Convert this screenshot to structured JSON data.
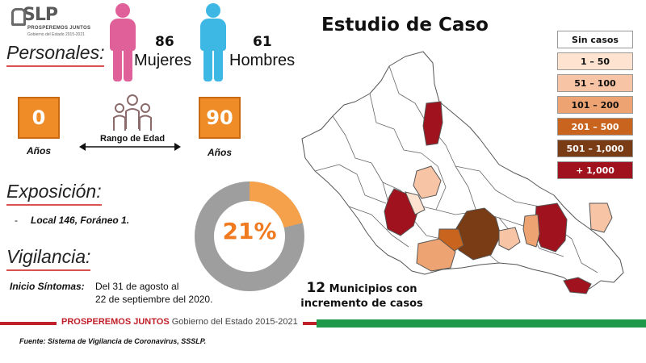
{
  "logo": {
    "name": "SLP",
    "line1": "PROSPEREMOS JUNTOS",
    "line2": "Gobierno del Estado 2015-2021"
  },
  "personales": {
    "heading": "Personales:",
    "women_count": "86",
    "women_label": "Mujeres",
    "men_count": "61",
    "men_label": "Hombres"
  },
  "age": {
    "min": "0",
    "max": "90",
    "min_unit": "Años",
    "max_unit": "Años",
    "range_label": "Rango de Edad"
  },
  "exposicion": {
    "heading": "Exposición:",
    "bullet": "-",
    "detail": "Local 146, Foráneo 1."
  },
  "vigilancia": {
    "heading": "Vigilancia:",
    "label": "Inicio Síntomas:",
    "line1": "Del 31 de agosto al",
    "line2": "22 de septiembre del 2020."
  },
  "donut": {
    "value_text": "21%",
    "fraction": 0.21,
    "fill_color": "#f5a04a",
    "track_color": "#9e9e9e"
  },
  "title": "Estudio de Caso",
  "legend": [
    {
      "label": "Sin casos",
      "color": "#ffffff",
      "text_color": "#111111"
    },
    {
      "label": "1 – 50",
      "color": "#fde3d0",
      "text_color": "#111111"
    },
    {
      "label": "51 – 100",
      "color": "#f7c4a5",
      "text_color": "#111111"
    },
    {
      "label": "101 – 200",
      "color": "#eea472",
      "text_color": "#111111"
    },
    {
      "label": "201 – 500",
      "color": "#c9641e",
      "text_color": "#ffffff"
    },
    {
      "label": "501 – 1,000",
      "color": "#7a3c14",
      "text_color": "#ffffff"
    },
    {
      "label": "+ 1,000",
      "color": "#a0121e",
      "text_color": "#ffffff"
    }
  ],
  "municipios": {
    "count": "12",
    "text_a": "Municipios con",
    "text_b": "incremento de casos"
  },
  "footer": {
    "brand_bold": "PROSPEREMOS JUNTOS",
    "brand_rest": "Gobierno del Estado 2015-2021",
    "bar_colors": [
      "#c0202a",
      "#ffffff",
      "#1e9a4a"
    ]
  },
  "source": "Fuente: Sistema de Vigilancia de Coronavirus, SSSLP."
}
